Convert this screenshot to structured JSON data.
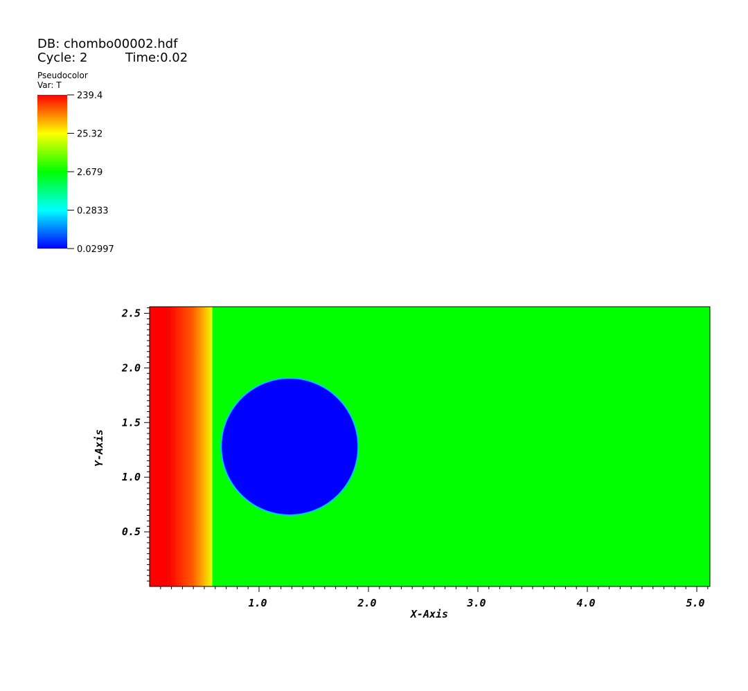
{
  "header": {
    "db_label": "DB: chombo00002.hdf",
    "cycle_label": "Cycle: 2",
    "time_label": "Time:0.02"
  },
  "legend": {
    "plot_type": "Pseudocolor",
    "var_label": "Var: T",
    "values": [
      "239.4",
      "25.32",
      "2.679",
      "0.2833",
      "0.02997"
    ],
    "min": 0.02997,
    "max": 239.4,
    "scale": "log",
    "colors": [
      "#ff0000",
      "#ffff00",
      "#00ff00",
      "#00ffff",
      "#0000ff"
    ]
  },
  "chart_data": {
    "type": "heatmap",
    "title": "",
    "xlabel": "X-Axis",
    "ylabel": "Y-Axis",
    "xlim": [
      0.0,
      5.12
    ],
    "ylim": [
      0.0,
      2.56
    ],
    "xticks": [
      "1.0",
      "2.0",
      "3.0",
      "4.0",
      "5.0"
    ],
    "yticks": [
      "0.5",
      "1.0",
      "1.5",
      "2.0",
      "2.5"
    ],
    "regions": [
      {
        "name": "hot-band",
        "x_range": [
          0.0,
          0.55
        ],
        "value": 239.4,
        "color": "#ff0000"
      },
      {
        "name": "front",
        "x": 0.56,
        "value": 25.32,
        "color": "#ffff00"
      },
      {
        "name": "background",
        "value": 2.679,
        "color": "#00ff00"
      },
      {
        "name": "cold-disk",
        "center": [
          1.28,
          1.28
        ],
        "radius": 0.62,
        "value": 0.02997,
        "color": "#0000ff"
      }
    ]
  }
}
